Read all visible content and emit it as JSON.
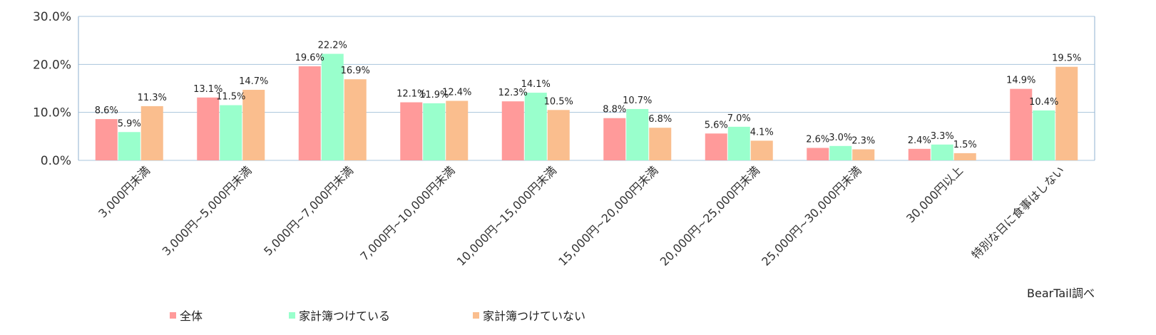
{
  "chart_data": {
    "type": "bar",
    "categories": [
      "3,000円未満",
      "3,000円~5,000円未満",
      "5,000円~7,000円未満",
      "7,000円~10,000円未満",
      "10,000円~15,000円未満",
      "15,000円~20,000円未満",
      "20,000円~25,000円未満",
      "25,000円~30,000円未満",
      "30,000円以上",
      "特別な日に食事はしない"
    ],
    "series": [
      {
        "name": "全体",
        "color": "#ff9a9a",
        "values": [
          8.6,
          13.1,
          19.6,
          12.1,
          12.3,
          8.8,
          5.6,
          2.6,
          2.4,
          14.9
        ]
      },
      {
        "name": "家計簿つけている",
        "color": "#99ffcc",
        "values": [
          5.9,
          11.5,
          22.2,
          11.9,
          14.1,
          10.7,
          7.0,
          3.0,
          3.3,
          10.4
        ]
      },
      {
        "name": "家計簿つけていない",
        "color": "#fabe8e",
        "values": [
          11.3,
          14.7,
          16.9,
          12.4,
          10.5,
          6.8,
          4.1,
          2.3,
          1.5,
          19.5
        ]
      }
    ],
    "ylim": [
      0,
      30
    ],
    "yticks": [
      "0.0%",
      "10.0%",
      "20.0%",
      "30.0%"
    ],
    "value_suffix": "%",
    "grid": true,
    "legend": "bottom-left"
  },
  "source_note": "BearTail調べ",
  "colors": {
    "gridline": "#a9c4dc",
    "axis": "#8fb2d0"
  }
}
